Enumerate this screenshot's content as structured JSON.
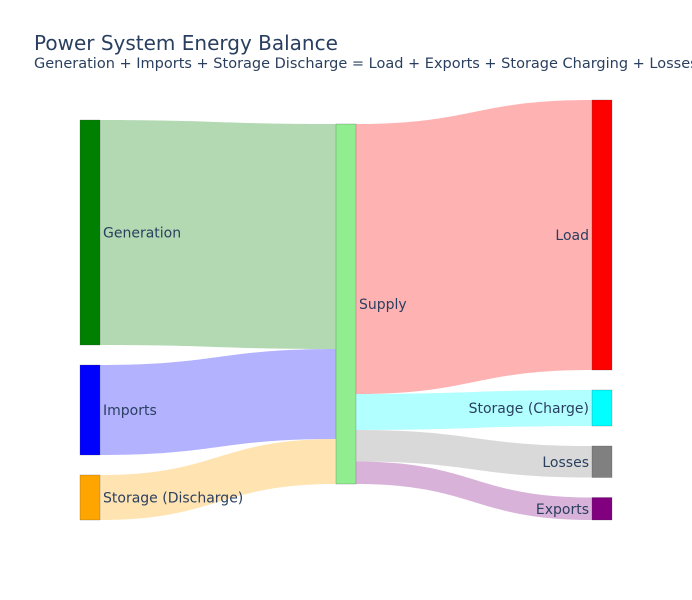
{
  "chart_data": {
    "type": "sankey",
    "title": "Power System Energy Balance",
    "subtitle": "Generation + Imports + Storage Discharge = Load + Exports + Storage Charging + Losses",
    "nodes": [
      {
        "id": "generation",
        "label": "Generation",
        "color": "#008000"
      },
      {
        "id": "imports",
        "label": "Imports",
        "color": "#0000ff"
      },
      {
        "id": "storage_discharge",
        "label": "Storage (Discharge)",
        "color": "#ffa500"
      },
      {
        "id": "supply",
        "label": "Supply",
        "color": "#90ee90"
      },
      {
        "id": "load",
        "label": "Load",
        "color": "#ff0000"
      },
      {
        "id": "storage_charge",
        "label": "Storage (Charge)",
        "color": "#00ffff"
      },
      {
        "id": "losses",
        "label": "Losses",
        "color": "#808080"
      },
      {
        "id": "exports",
        "label": "Exports",
        "color": "#800080"
      }
    ],
    "links": [
      {
        "source": "generation",
        "target": "supply",
        "value": 500,
        "color": "rgba(0,128,0,0.3)"
      },
      {
        "source": "imports",
        "target": "supply",
        "value": 200,
        "color": "rgba(0,0,255,0.3)"
      },
      {
        "source": "storage_discharge",
        "target": "supply",
        "value": 100,
        "color": "rgba(255,165,0,0.3)"
      },
      {
        "source": "supply",
        "target": "load",
        "value": 600,
        "color": "rgba(255,0,0,0.3)"
      },
      {
        "source": "supply",
        "target": "storage_charge",
        "value": 80,
        "color": "rgba(0,255,255,0.3)"
      },
      {
        "source": "supply",
        "target": "losses",
        "value": 70,
        "color": "rgba(128,128,128,0.3)"
      },
      {
        "source": "supply",
        "target": "exports",
        "value": 50,
        "color": "rgba(128,0,128,0.3)"
      }
    ]
  }
}
